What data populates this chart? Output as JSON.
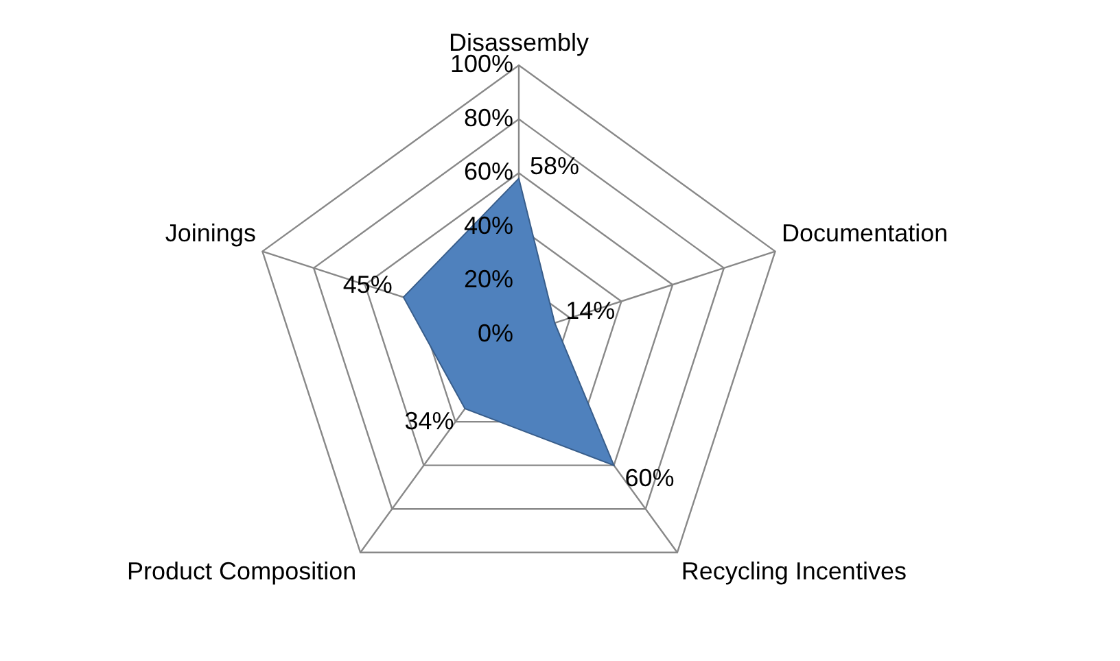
{
  "chart_data": {
    "type": "radar",
    "categories": [
      "Disassembly",
      "Documentation",
      "Recycling Incentives",
      "Product Composition",
      "Joinings"
    ],
    "series": [
      {
        "color": "#4f81bd",
        "values": [
          58,
          14,
          60,
          34,
          45
        ],
        "value_labels": [
          "58%",
          "14%",
          "60%",
          "34%",
          "45%"
        ]
      }
    ],
    "ylim": [
      0,
      100
    ],
    "yticks": [
      {
        "value": 0,
        "label": "0%"
      },
      {
        "value": 20,
        "label": "20%"
      },
      {
        "value": 40,
        "label": "40%"
      },
      {
        "value": 60,
        "label": "60%"
      },
      {
        "value": 80,
        "label": "80%"
      },
      {
        "value": 100,
        "label": "100%"
      }
    ],
    "grid": true,
    "legend": false,
    "marker": "none"
  }
}
